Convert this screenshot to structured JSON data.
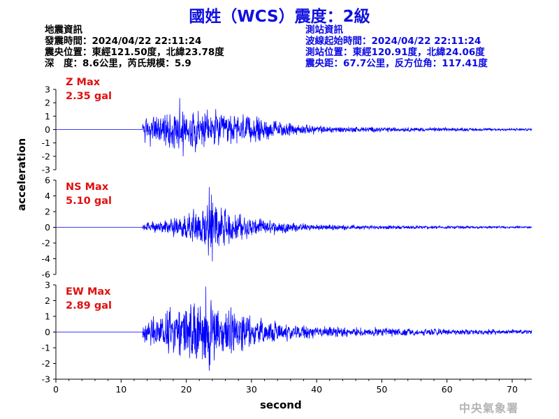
{
  "title": "國姓（WCS）震度：2級",
  "quake_info": {
    "heading": "地震資訊",
    "time": "發震時間：2024/04/22 22:11:24",
    "location": "震央位置：東經121.50度，北緯23.78度",
    "depth_mag": "深　度：8.6公里，芮氏規模：5.9"
  },
  "station_info": {
    "heading": "測站資訊",
    "wave_time": "波線起始時間：2024/04/22 22:11:24",
    "location": "測站位置：東經120.91度，北緯24.06度",
    "distance": "震央距：67.7公里，反方位角：117.41度"
  },
  "agency": "中央氣象署",
  "colors": {
    "title": "#1010e0",
    "trace": "#0000ff",
    "max_label": "#e01010",
    "station_info": "#0a0ae6"
  },
  "chart_data": {
    "type": "line",
    "xlabel": "second",
    "ylabel": "acceleration",
    "xlim": [
      0,
      73
    ],
    "x_ticks": [
      0,
      10,
      20,
      30,
      40,
      50,
      60,
      70
    ],
    "onset_second": 13.3,
    "grid": false,
    "panels": [
      {
        "component": "Z",
        "max_label": "Z Max",
        "max_value": "2.35 gal",
        "peak": 2.35,
        "ylim": [
          -3,
          3
        ],
        "y_ticks": [
          3,
          2,
          1,
          0,
          -1,
          -2,
          -3
        ],
        "envelope": [
          [
            0,
            0
          ],
          [
            13.2,
            0
          ],
          [
            13.4,
            1.3
          ],
          [
            15,
            1.5
          ],
          [
            18,
            1.9
          ],
          [
            19,
            2.35
          ],
          [
            22,
            1.8
          ],
          [
            25,
            1.7
          ],
          [
            28,
            1.6
          ],
          [
            30,
            1.3
          ],
          [
            33,
            0.9
          ],
          [
            36,
            0.6
          ],
          [
            40,
            0.4
          ],
          [
            45,
            0.3
          ],
          [
            50,
            0.25
          ],
          [
            55,
            0.2
          ],
          [
            60,
            0.18
          ],
          [
            65,
            0.15
          ],
          [
            73,
            0.12
          ]
        ]
      },
      {
        "component": "NS",
        "max_label": "NS Max",
        "max_value": "5.10 gal",
        "peak": 5.1,
        "ylim": [
          -6,
          6
        ],
        "y_ticks": [
          6,
          4,
          2,
          0,
          -2,
          -4,
          -6
        ],
        "envelope": [
          [
            0,
            0
          ],
          [
            13.2,
            0
          ],
          [
            13.4,
            0.6
          ],
          [
            15,
            0.9
          ],
          [
            18,
            1.4
          ],
          [
            20,
            2.0
          ],
          [
            22,
            3.0
          ],
          [
            23.5,
            5.1
          ],
          [
            25,
            3.5
          ],
          [
            27,
            2.5
          ],
          [
            30,
            1.8
          ],
          [
            33,
            1.2
          ],
          [
            36,
            0.8
          ],
          [
            40,
            0.5
          ],
          [
            45,
            0.4
          ],
          [
            50,
            0.3
          ],
          [
            55,
            0.3
          ],
          [
            60,
            0.25
          ],
          [
            65,
            0.2
          ],
          [
            73,
            0.18
          ]
        ]
      },
      {
        "component": "EW",
        "max_label": "EW Max",
        "max_value": "2.89 gal",
        "peak": 2.89,
        "ylim": [
          -3,
          3
        ],
        "y_ticks": [
          3,
          2,
          1,
          0,
          -1,
          -2,
          -3
        ],
        "envelope": [
          [
            0,
            0
          ],
          [
            13.2,
            0
          ],
          [
            13.4,
            0.7
          ],
          [
            15,
            1.3
          ],
          [
            17,
            1.7
          ],
          [
            19,
            2.1
          ],
          [
            21,
            2.3
          ],
          [
            23,
            2.89
          ],
          [
            25,
            2.3
          ],
          [
            27,
            1.9
          ],
          [
            29,
            1.5
          ],
          [
            32,
            1.0
          ],
          [
            35,
            0.7
          ],
          [
            38,
            0.55
          ],
          [
            42,
            0.45
          ],
          [
            45,
            0.4
          ],
          [
            50,
            0.35
          ],
          [
            55,
            0.3
          ],
          [
            60,
            0.25
          ],
          [
            65,
            0.22
          ],
          [
            73,
            0.2
          ]
        ]
      }
    ]
  }
}
